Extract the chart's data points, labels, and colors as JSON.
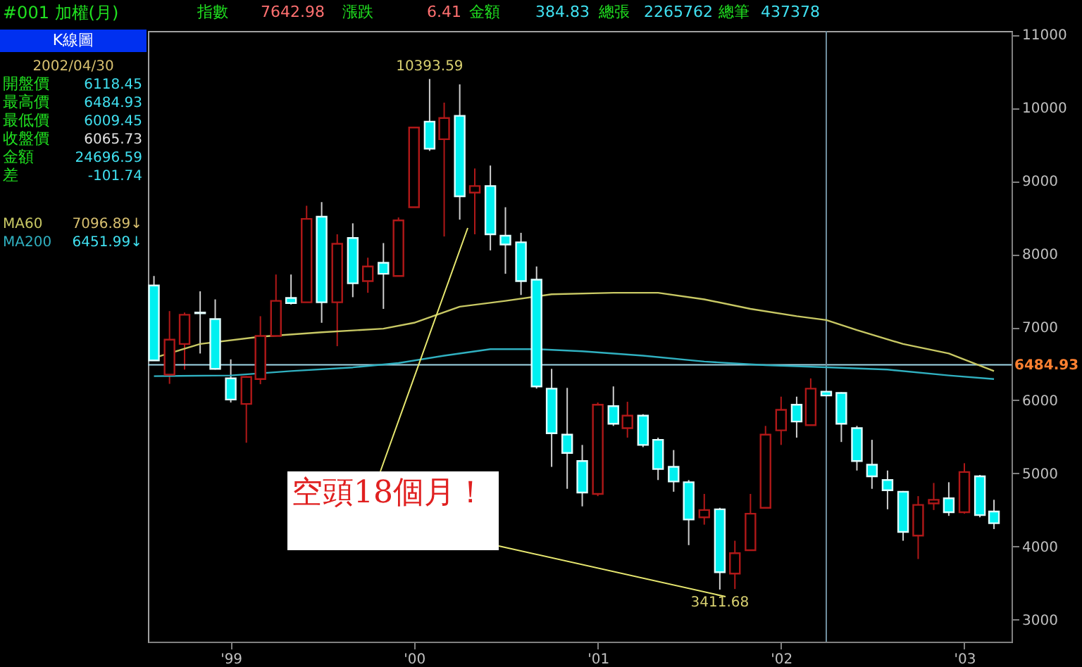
{
  "chart_data": {
    "type": "candlestick",
    "title": "#001 加權(月)",
    "x": [
      "1998-08",
      "1998-09",
      "1998-10",
      "1998-11",
      "1998-12",
      "1999-01",
      "1999-02",
      "1999-03",
      "1999-04",
      "1999-05",
      "1999-06",
      "1999-07",
      "1999-08",
      "1999-09",
      "1999-10",
      "1999-11",
      "1999-12",
      "2000-01",
      "2000-02",
      "2000-03",
      "2000-04",
      "2000-05",
      "2000-06",
      "2000-07",
      "2000-08",
      "2000-09",
      "2000-10",
      "2000-11",
      "2000-12",
      "2001-01",
      "2001-02",
      "2001-03",
      "2001-04",
      "2001-05",
      "2001-06",
      "2001-07",
      "2001-08",
      "2001-09",
      "2001-10",
      "2001-11",
      "2001-12",
      "2002-01",
      "2002-02",
      "2002-03",
      "2002-04",
      "2002-05",
      "2002-06",
      "2002-07",
      "2002-08",
      "2002-09",
      "2002-10",
      "2002-11",
      "2002-12",
      "2003-01",
      "2003-02",
      "2003-03"
    ],
    "ohlc": [
      [
        7570,
        7700,
        6540,
        6545
      ],
      [
        6350,
        7220,
        6225,
        6830
      ],
      [
        6770,
        7200,
        6420,
        7170
      ],
      [
        7200,
        7490,
        6640,
        7190
      ],
      [
        7110,
        7380,
        6420,
        6430
      ],
      [
        6300,
        6560,
        5970,
        6010
      ],
      [
        5950,
        6330,
        5420,
        6320
      ],
      [
        6290,
        7150,
        6220,
        6880
      ],
      [
        6880,
        7720,
        6880,
        7360
      ],
      [
        7400,
        7720,
        7310,
        7330
      ],
      [
        7340,
        8660,
        7340,
        8480
      ],
      [
        8510,
        8710,
        7060,
        7340
      ],
      [
        7340,
        8270,
        6740,
        8140
      ],
      [
        8220,
        8420,
        7410,
        7600
      ],
      [
        7630,
        7950,
        7470,
        7830
      ],
      [
        7880,
        8150,
        7250,
        7730
      ],
      [
        7700,
        8500,
        7700,
        8460
      ],
      [
        8640,
        9730,
        8640,
        9730
      ],
      [
        9810,
        10393.59,
        9410,
        9440
      ],
      [
        9570,
        10070,
        8240,
        9860
      ],
      [
        9890,
        10320,
        8470,
        8790
      ],
      [
        8840,
        9170,
        8270,
        8930
      ],
      [
        8930,
        9210,
        8050,
        8270
      ],
      [
        8250,
        8640,
        7730,
        8130
      ],
      [
        8160,
        8290,
        7440,
        7630
      ],
      [
        7650,
        7830,
        6160,
        6190
      ],
      [
        6160,
        6430,
        5090,
        5550
      ],
      [
        5530,
        6170,
        4790,
        5280
      ],
      [
        5170,
        5390,
        4550,
        4740
      ],
      [
        4720,
        5970,
        4690,
        5940
      ],
      [
        5920,
        6190,
        5650,
        5680
      ],
      [
        5620,
        5980,
        5490,
        5790
      ],
      [
        5790,
        5810,
        5360,
        5390
      ],
      [
        5460,
        5490,
        4910,
        5060
      ],
      [
        5090,
        5320,
        4750,
        4890
      ],
      [
        4880,
        4910,
        4020,
        4370
      ],
      [
        4400,
        4720,
        4300,
        4500
      ],
      [
        4510,
        4530,
        3411.68,
        3650
      ],
      [
        3630,
        4080,
        3420,
        3910
      ],
      [
        3950,
        4720,
        3950,
        4450
      ],
      [
        4530,
        5650,
        4530,
        5530
      ],
      [
        5590,
        6050,
        5390,
        5870
      ],
      [
        5940,
        6050,
        5490,
        5710
      ],
      [
        5660,
        6300,
        5660,
        6160
      ],
      [
        6118.45,
        6484.93,
        6009.45,
        6065.73
      ],
      [
        6100,
        6110,
        5430,
        5680
      ],
      [
        5620,
        5650,
        5040,
        5170
      ],
      [
        5120,
        5460,
        4790,
        4960
      ],
      [
        4910,
        5040,
        4510,
        4770
      ],
      [
        4750,
        4760,
        4080,
        4200
      ],
      [
        4150,
        4690,
        3830,
        4570
      ],
      [
        4590,
        4870,
        4500,
        4640
      ],
      [
        4660,
        4880,
        4420,
        4470
      ],
      [
        4470,
        5140,
        4450,
        5020
      ],
      [
        4960,
        4980,
        4400,
        4430
      ],
      [
        4480,
        4640,
        4240,
        4320
      ]
    ],
    "series": [
      {
        "name": "MA60",
        "type": "line",
        "color": "#c8c864",
        "x": [
          "1998-08",
          "1998-11",
          "1999-03",
          "1999-07",
          "1999-11",
          "2000-01",
          "2000-04",
          "2000-07",
          "2000-10",
          "2001-02",
          "2001-05",
          "2001-08",
          "2001-11",
          "2002-02",
          "2002-04",
          "2002-06",
          "2002-09",
          "2002-12",
          "2003-03"
        ],
        "values": [
          6580,
          6770,
          6870,
          6930,
          6980,
          7060,
          7280,
          7360,
          7450,
          7470,
          7470,
          7380,
          7250,
          7150,
          7096.89,
          6960,
          6770,
          6640,
          6400
        ]
      },
      {
        "name": "MA200",
        "type": "line",
        "color": "#30b0c0",
        "x": [
          "1998-08",
          "1999-01",
          "1999-05",
          "1999-09",
          "1999-12",
          "2000-03",
          "2000-06",
          "2000-09",
          "2000-12",
          "2001-04",
          "2001-08",
          "2001-12",
          "2002-04",
          "2002-08",
          "2002-12",
          "2003-03"
        ],
        "values": [
          6330,
          6340,
          6400,
          6450,
          6510,
          6610,
          6700,
          6700,
          6670,
          6610,
          6530,
          6480,
          6451.99,
          6420,
          6340,
          6290
        ]
      }
    ],
    "xlim": [
      "1998-07-20",
      "2003-04-05"
    ],
    "xticks": [
      {
        "value": "1999-01",
        "label": "'99"
      },
      {
        "value": "2000-01",
        "label": "'00"
      },
      {
        "value": "2001-01",
        "label": "'01"
      },
      {
        "value": "2002-01",
        "label": "'02"
      },
      {
        "value": "2003-01",
        "label": "'03"
      }
    ],
    "ylim": [
      2700,
      11050
    ],
    "yticks": [
      3000,
      4000,
      5000,
      6000,
      7000,
      8000,
      9000,
      10000,
      11000
    ],
    "grid": false,
    "ref_lines": [
      {
        "axis": "y",
        "value": 6484.93,
        "label": "6484.93",
        "color": "#a0d8e8"
      },
      {
        "axis": "x",
        "value": "2002-04",
        "color": "#7090a0"
      }
    ],
    "annotations": [
      "指數",
      "7642.98",
      "漲跌",
      "6.41",
      "金額",
      "384.83",
      "總張",
      "2265762",
      "總筆",
      "437378",
      "K線圖",
      "2002/04/30",
      "開盤價",
      "6118.45",
      "最高價",
      "6484.93",
      "最低價",
      "6009.45",
      "收盤價",
      "6065.73",
      "金額",
      "24696.59",
      "差",
      "-101.74",
      "7096.89↓",
      "6451.99↓",
      "空頭18個月！",
      {
        "text": "10393.59",
        "x": "2000-02",
        "y": 10393.59
      },
      {
        "text": "3411.68",
        "x": "2001-09",
        "y": 3411.68
      }
    ]
  }
}
